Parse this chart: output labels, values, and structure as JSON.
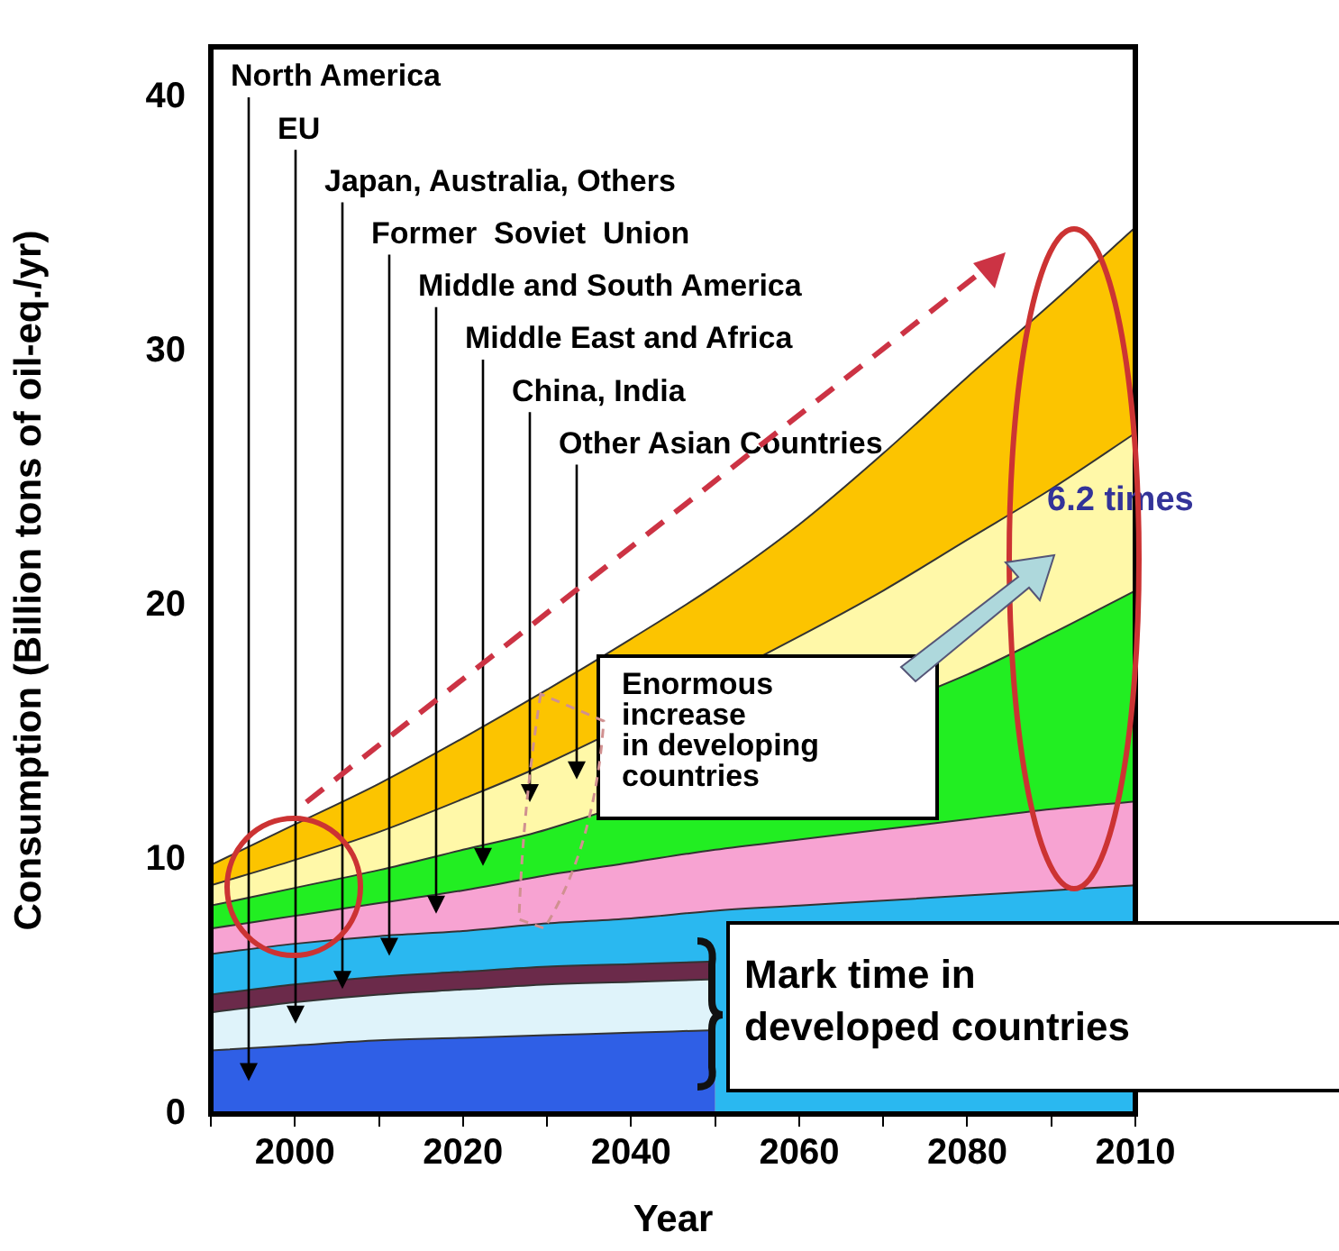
{
  "chart_data": {
    "type": "area",
    "xlabel": "Year",
    "ylabel": "Consumption (Billion tons of oil-eq./yr)",
    "categories": [
      null,
      "2000",
      null,
      "2020",
      null,
      "2040",
      null,
      "2060",
      null,
      "2080",
      null,
      "2010"
    ],
    "series": [
      {
        "name": "North America",
        "color": "#2f5fe6",
        "values": [
          2.5,
          2.7,
          2.9,
          3.0,
          3.1,
          3.2,
          3.3,
          null,
          null,
          null,
          null,
          null
        ]
      },
      {
        "name": "EU",
        "color": "#dff3fa",
        "values": [
          4.0,
          4.4,
          4.7,
          4.9,
          5.1,
          5.2,
          5.3,
          null,
          null,
          null,
          null,
          null
        ]
      },
      {
        "name": "Japan, Australia, Others",
        "color": "#6b2a4a",
        "values": [
          4.7,
          5.1,
          5.4,
          5.6,
          5.8,
          5.9,
          6.0,
          null,
          null,
          null,
          null,
          null
        ]
      },
      {
        "name": "Former  Soviet  Union",
        "color": "#2ab8f0",
        "values": [
          6.3,
          6.7,
          7.0,
          7.2,
          7.5,
          7.7,
          8.0,
          8.2,
          8.4,
          8.6,
          8.8,
          9.0
        ]
      },
      {
        "name": "Middle and South America",
        "color": "#f7a3d2",
        "values": [
          7.3,
          7.8,
          8.3,
          8.8,
          9.4,
          9.9,
          10.4,
          10.8,
          11.2,
          11.6,
          12.0,
          12.3
        ]
      },
      {
        "name": "Middle East and Africa",
        "color": "#22ee22",
        "values": [
          8.2,
          8.9,
          9.6,
          10.4,
          11.2,
          null,
          null,
          null,
          null,
          17.3,
          18.9,
          20.6
        ]
      },
      {
        "name": "China, India",
        "color": "#fff8a8",
        "values": [
          9.0,
          10.0,
          11.1,
          12.4,
          13.8,
          null,
          null,
          18.8,
          20.6,
          22.6,
          24.6,
          26.8
        ]
      },
      {
        "name": "Other Asian Countries",
        "color": "#fcc400",
        "values": [
          9.8,
          11.4,
          13.0,
          14.8,
          16.7,
          18.7,
          20.8,
          23.2,
          26.0,
          29.0,
          31.9,
          34.9
        ]
      }
    ],
    "ylim": [
      0,
      42
    ],
    "yticks": [
      0,
      10,
      20,
      30,
      40
    ],
    "marker": "none",
    "annotations": [
      "Enormous\nincrease\nin developing\ncountries",
      "6.2 times",
      "Mark time in\ndeveloped countries"
    ]
  }
}
